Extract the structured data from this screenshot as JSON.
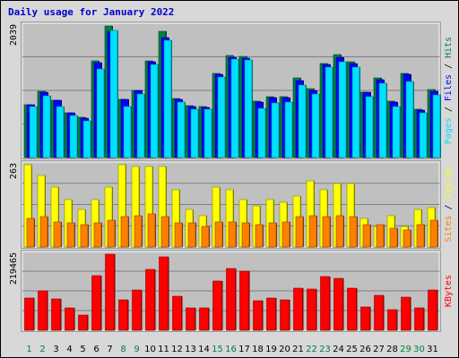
{
  "title": "Daily usage for January 2022",
  "colors": {
    "background": "#d8d8d8",
    "panel": "#c0c0c0",
    "hits": "#008040",
    "files": "#0000ff",
    "pages": "#00e0ff",
    "visits": "#ffff00",
    "sites": "#ff8000",
    "kbytes": "#ff0000",
    "weekend_label": "#008040",
    "weekday_label": "#000000"
  },
  "chart_data": [
    {
      "type": "bar",
      "panel": "hits_files_pages",
      "y_max_label": "2039",
      "legend": [
        {
          "name": "Pages",
          "color": "#00e0ff"
        },
        {
          "name": "Files",
          "color": "#0000ff"
        },
        {
          "name": "Hits",
          "color": "#008040"
        }
      ],
      "ylim": [
        0,
        2039
      ],
      "categories": [
        "1",
        "2",
        "3",
        "4",
        "5",
        "6",
        "7",
        "8",
        "9",
        "10",
        "11",
        "12",
        "13",
        "14",
        "15",
        "16",
        "17",
        "18",
        "19",
        "20",
        "21",
        "22",
        "23",
        "24",
        "25",
        "26",
        "27",
        "28",
        "29",
        "30",
        "31"
      ],
      "series": [
        {
          "name": "Hits",
          "values": [
            810,
            1020,
            880,
            690,
            620,
            1490,
            2020,
            900,
            1040,
            1490,
            1940,
            910,
            800,
            780,
            1300,
            1570,
            1560,
            870,
            940,
            930,
            1220,
            1060,
            1450,
            1590,
            1470,
            1010,
            1230,
            870,
            1300,
            750,
            1050
          ]
        },
        {
          "name": "Files",
          "values": [
            810,
            1010,
            880,
            690,
            610,
            1460,
            1940,
            890,
            1030,
            1470,
            1850,
            900,
            780,
            770,
            1280,
            1540,
            1530,
            860,
            920,
            920,
            1190,
            1040,
            1430,
            1540,
            1440,
            1000,
            1200,
            860,
            1280,
            730,
            1020
          ]
        },
        {
          "name": "Pages",
          "values": [
            780,
            950,
            780,
            650,
            560,
            1360,
            1950,
            790,
            980,
            1430,
            1810,
            850,
            750,
            740,
            1240,
            1510,
            1500,
            760,
            840,
            860,
            1110,
            980,
            1390,
            1480,
            1390,
            930,
            1140,
            780,
            1170,
            690,
            960
          ]
        }
      ]
    },
    {
      "type": "bar",
      "panel": "visits_sites",
      "y_max_label": "263",
      "legend": [
        {
          "name": "Sites",
          "color": "#ff8000"
        },
        {
          "name": "Visits",
          "color": "#ffff00"
        }
      ],
      "ylim": [
        0,
        263
      ],
      "categories": [
        "1",
        "2",
        "3",
        "4",
        "5",
        "6",
        "7",
        "8",
        "9",
        "10",
        "11",
        "12",
        "13",
        "14",
        "15",
        "16",
        "17",
        "18",
        "19",
        "20",
        "21",
        "22",
        "23",
        "24",
        "25",
        "26",
        "27",
        "28",
        "29",
        "30",
        "31"
      ],
      "series": [
        {
          "name": "Visits",
          "values": [
            260,
            225,
            190,
            150,
            120,
            150,
            190,
            260,
            255,
            255,
            255,
            180,
            120,
            100,
            190,
            180,
            150,
            130,
            150,
            140,
            160,
            210,
            180,
            200,
            200,
            90,
            65,
            100,
            65,
            120,
            125
          ]
        },
        {
          "name": "Sites",
          "values": [
            90,
            95,
            80,
            75,
            70,
            75,
            85,
            95,
            100,
            105,
            95,
            75,
            75,
            65,
            80,
            80,
            75,
            70,
            75,
            80,
            95,
            100,
            95,
            100,
            95,
            70,
            70,
            60,
            55,
            70,
            85
          ]
        }
      ]
    },
    {
      "type": "bar",
      "panel": "kbytes",
      "y_max_label": "219465",
      "legend": [
        {
          "name": "KBytes",
          "color": "#ff0000"
        }
      ],
      "ylim": [
        0,
        219465
      ],
      "categories": [
        "1",
        "2",
        "3",
        "4",
        "5",
        "6",
        "7",
        "8",
        "9",
        "10",
        "11",
        "12",
        "13",
        "14",
        "15",
        "16",
        "17",
        "18",
        "19",
        "20",
        "21",
        "22",
        "23",
        "24",
        "25",
        "26",
        "27",
        "28",
        "29",
        "30",
        "31"
      ],
      "weekend_days": [
        "1",
        "2",
        "8",
        "9",
        "15",
        "16",
        "22",
        "23",
        "29",
        "30"
      ],
      "series": [
        {
          "name": "KBytes",
          "values": [
            92000,
            113000,
            90000,
            65000,
            43000,
            155000,
            217000,
            87000,
            116000,
            173000,
            209000,
            98000,
            64000,
            64000,
            141000,
            175000,
            168000,
            85000,
            92000,
            88000,
            120000,
            117000,
            153000,
            149000,
            120000,
            67000,
            99000,
            58000,
            94000,
            64000,
            115000
          ]
        }
      ]
    }
  ]
}
